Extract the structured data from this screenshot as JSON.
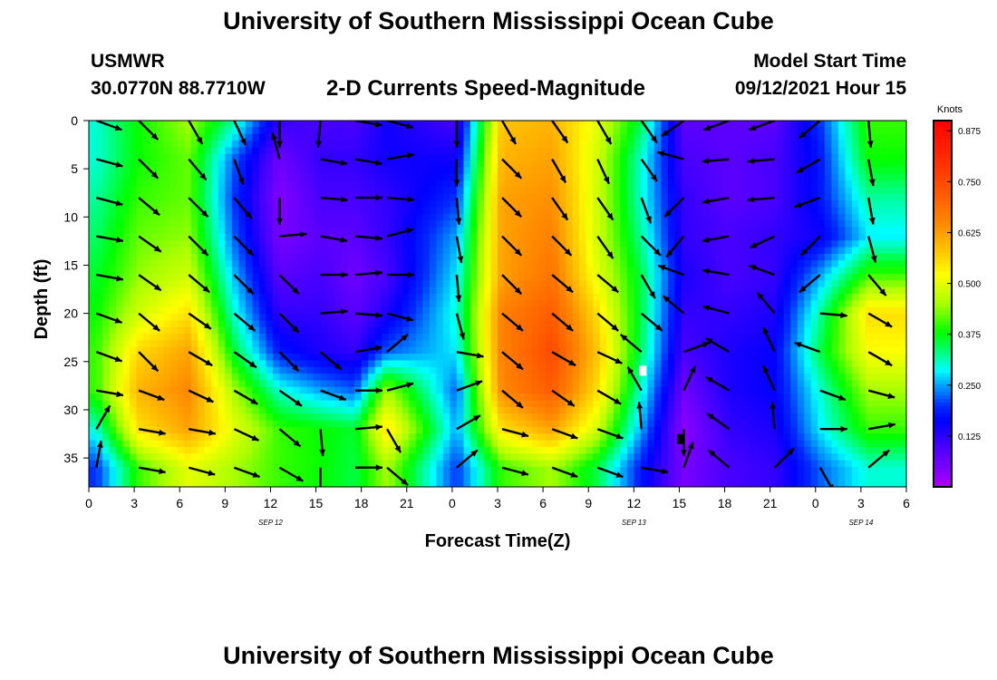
{
  "header": {
    "title_top": "University of Southern Mississippi Ocean Cube",
    "station": "USMWR",
    "coords": "30.0770N  88.7710W",
    "subtitle": "2-D Currents Speed-Magnitude",
    "model_start_label": "Model Start Time",
    "model_start_value": "09/12/2021 Hour 15",
    "title_bottom": "University of Southern Mississippi Ocean Cube"
  },
  "chart_data": {
    "type": "heatmap",
    "title": "2-D Currents Speed-Magnitude",
    "xlabel": "Forecast Time(Z)",
    "ylabel": "Depth (ft)",
    "x_tick_labels": [
      "0",
      "3",
      "6",
      "9",
      "12",
      "15",
      "18",
      "21",
      "0",
      "3",
      "6",
      "9",
      "12",
      "15",
      "18",
      "21",
      "0",
      "3",
      "6"
    ],
    "x_hours": [
      0,
      3,
      6,
      9,
      12,
      15,
      18,
      21,
      24,
      27,
      30,
      33,
      36,
      39,
      42,
      45,
      48,
      51,
      54
    ],
    "xlim": [
      0,
      54
    ],
    "date_labels": [
      {
        "text": "SEP 12",
        "hour": 12
      },
      {
        "text": "SEP 13",
        "hour": 36
      },
      {
        "text": "SEP 14",
        "hour": 51
      }
    ],
    "y_ticks": [
      0,
      5,
      10,
      15,
      20,
      25,
      30,
      35
    ],
    "ylim": [
      0,
      38
    ],
    "colorbar": {
      "title": "Knots",
      "ticks": [
        "0.875",
        "0.750",
        "0.625",
        "0.500",
        "0.375",
        "0.250",
        "0.125"
      ],
      "tick_values": [
        0.875,
        0.75,
        0.625,
        0.5,
        0.375,
        0.25,
        0.125
      ],
      "range": [
        0,
        0.9
      ]
    },
    "arrow_columns_hours": [
      0.5,
      3.3,
      6.6,
      9.6,
      12.6,
      15.3,
      17.6,
      19.7,
      24.3,
      27.3,
      30.6,
      33.6,
      36.5,
      39.3,
      42.3,
      45.3,
      48.3,
      51.5
    ],
    "arrow_depths": [
      0,
      4,
      8,
      12,
      16,
      20,
      24,
      28,
      32,
      36
    ],
    "arrow_directions_deg": [
      [
        20,
        45,
        60,
        65,
        90,
        95,
        10,
        15,
        90,
        60,
        55,
        60,
        55,
        145,
        160,
        160,
        140,
        85
      ],
      [
        15,
        45,
        50,
        70,
        255,
        10,
        10,
        350,
        90,
        45,
        60,
        65,
        55,
        195,
        175,
        175,
        150,
        80
      ],
      [
        15,
        40,
        45,
        50,
        90,
        5,
        0,
        5,
        85,
        45,
        55,
        55,
        70,
        135,
        170,
        175,
        160,
        80
      ],
      [
        10,
        35,
        45,
        45,
        355,
        10,
        5,
        345,
        80,
        45,
        45,
        55,
        45,
        130,
        170,
        155,
        135,
        75
      ],
      [
        10,
        35,
        40,
        45,
        45,
        0,
        355,
        0,
        85,
        45,
        40,
        40,
        60,
        200,
        190,
        200,
        140,
        50
      ],
      [
        20,
        40,
        35,
        40,
        45,
        355,
        5,
        15,
        75,
        40,
        40,
        40,
        40,
        220,
        195,
        230,
        5,
        30
      ],
      [
        20,
        45,
        30,
        35,
        45,
        40,
        350,
        320,
        10,
        40,
        30,
        25,
        220,
        340,
        210,
        245,
        200,
        30
      ],
      [
        10,
        20,
        25,
        30,
        35,
        20,
        0,
        345,
        340,
        40,
        35,
        30,
        240,
        295,
        210,
        245,
        20,
        15
      ],
      [
        300,
        10,
        10,
        25,
        40,
        85,
        355,
        60,
        330,
        15,
        20,
        20,
        265,
        90,
        215,
        265,
        0,
        350
      ],
      [
        280,
        10,
        15,
        20,
        30,
        90,
        0,
        40,
        320,
        15,
        20,
        20,
        10,
        290,
        220,
        315,
        60,
        320
      ]
    ],
    "speed_field_knots": [
      [
        0.3,
        0.38,
        0.45,
        0.32,
        0.12,
        0.1,
        0.1,
        0.15,
        0.1,
        0.58,
        0.6,
        0.5,
        0.35,
        0.08,
        0.08,
        0.08,
        0.2,
        0.4
      ],
      [
        0.3,
        0.38,
        0.42,
        0.22,
        0.06,
        0.12,
        0.12,
        0.15,
        0.15,
        0.6,
        0.62,
        0.48,
        0.3,
        0.1,
        0.08,
        0.1,
        0.18,
        0.38
      ],
      [
        0.32,
        0.4,
        0.42,
        0.2,
        0.04,
        0.1,
        0.1,
        0.12,
        0.2,
        0.62,
        0.64,
        0.48,
        0.3,
        0.12,
        0.08,
        0.1,
        0.18,
        0.32
      ],
      [
        0.34,
        0.42,
        0.44,
        0.22,
        0.05,
        0.08,
        0.08,
        0.12,
        0.25,
        0.62,
        0.66,
        0.48,
        0.32,
        0.12,
        0.1,
        0.12,
        0.15,
        0.28
      ],
      [
        0.36,
        0.44,
        0.48,
        0.26,
        0.08,
        0.1,
        0.06,
        0.1,
        0.28,
        0.62,
        0.68,
        0.5,
        0.35,
        0.14,
        0.1,
        0.12,
        0.25,
        0.4
      ],
      [
        0.38,
        0.48,
        0.55,
        0.3,
        0.12,
        0.12,
        0.08,
        0.14,
        0.3,
        0.66,
        0.72,
        0.55,
        0.35,
        0.12,
        0.12,
        0.14,
        0.32,
        0.55
      ],
      [
        0.4,
        0.56,
        0.62,
        0.36,
        0.18,
        0.14,
        0.12,
        0.22,
        0.28,
        0.66,
        0.75,
        0.58,
        0.34,
        0.1,
        0.14,
        0.16,
        0.35,
        0.52
      ],
      [
        0.4,
        0.6,
        0.65,
        0.45,
        0.3,
        0.25,
        0.22,
        0.45,
        0.22,
        0.65,
        0.72,
        0.55,
        0.3,
        0.06,
        0.14,
        0.16,
        0.3,
        0.45
      ],
      [
        0.3,
        0.55,
        0.62,
        0.5,
        0.4,
        0.38,
        0.36,
        0.55,
        0.25,
        0.55,
        0.62,
        0.48,
        0.25,
        0.03,
        0.12,
        0.14,
        0.28,
        0.4
      ],
      [
        0.2,
        0.4,
        0.5,
        0.45,
        0.4,
        0.38,
        0.35,
        0.45,
        0.2,
        0.4,
        0.45,
        0.35,
        0.18,
        0.05,
        0.1,
        0.12,
        0.22,
        0.3
      ]
    ],
    "markers": [
      {
        "hour": 36.6,
        "depth": 25.9,
        "color": "#ffffff"
      },
      {
        "hour": 39.1,
        "depth": 33.0,
        "color": "#000000"
      }
    ]
  }
}
